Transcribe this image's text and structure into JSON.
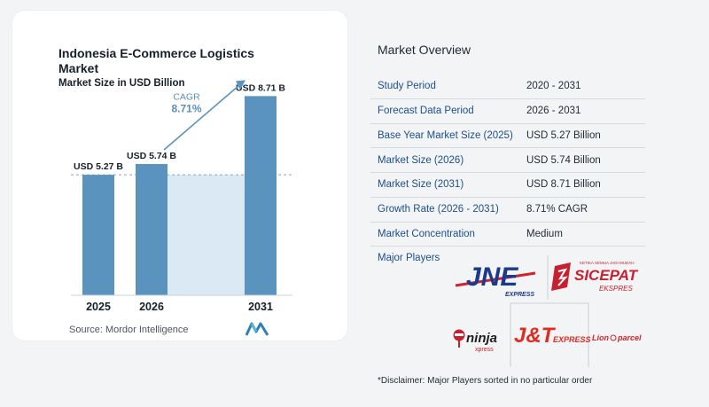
{
  "chart_data": {
    "type": "bar",
    "title": "Indonesia E-Commerce Logistics Market",
    "subtitle": "Market Size in USD Billion",
    "categories": [
      "2025",
      "2026",
      "2031"
    ],
    "values": [
      5.27,
      5.74,
      8.71
    ],
    "data_labels": [
      "USD 5.27 B",
      "USD 5.74 B",
      "USD 8.71 B"
    ],
    "cagr_label": "CAGR",
    "cagr_value": "8.71%",
    "ylim": [
      0,
      9.5
    ],
    "colors": {
      "bar": "#5b93bf",
      "bar_dark": "#4f86b2",
      "band": "#dbe9f5",
      "arrow": "#5b93bf",
      "cagr_text": "#5b8fbd"
    }
  },
  "source": "Source:  Mordor Intelligence",
  "brand_logo_icon": "mordor-intelligence-logo-icon",
  "overview": {
    "title": "Market Overview",
    "rows": [
      {
        "label": "Study Period",
        "value": "2020 - 2031"
      },
      {
        "label": "Forecast Data Period",
        "value": "2026 - 2031"
      },
      {
        "label": "Base Year Market Size (2025)",
        "value": "USD 5.27 Billion"
      },
      {
        "label": "Market Size (2026)",
        "value": "USD 5.74 Billion"
      },
      {
        "label": "Market Size (2031)",
        "value": "USD 8.71 Billion"
      },
      {
        "label": "Growth Rate (2026 - 2031)",
        "value": "8.71% CAGR"
      },
      {
        "label": "Market Concentration",
        "value": "Medium"
      }
    ]
  },
  "players": {
    "label": "Major Players",
    "logos": [
      {
        "icon": "jne-logo-icon",
        "text": "JNE",
        "sub": "EXPRESS"
      },
      {
        "icon": "sicepat-logo-icon",
        "text": "SICEPAT",
        "sub": "EKSPRES",
        "tagline": "KETIKA SEMUA JADI MUDAH"
      },
      {
        "icon": "ninja-xpress-logo-icon",
        "text": "ninja",
        "sub": "xpress"
      },
      {
        "icon": "jt-express-logo-icon",
        "text": "J&T",
        "sub": "EXPRESS"
      },
      {
        "icon": "lion-parcel-logo-icon",
        "text": "Lion",
        "sub": "parcel"
      }
    ]
  },
  "disclaimer": "*Disclaimer: Major Players sorted in no particular order"
}
